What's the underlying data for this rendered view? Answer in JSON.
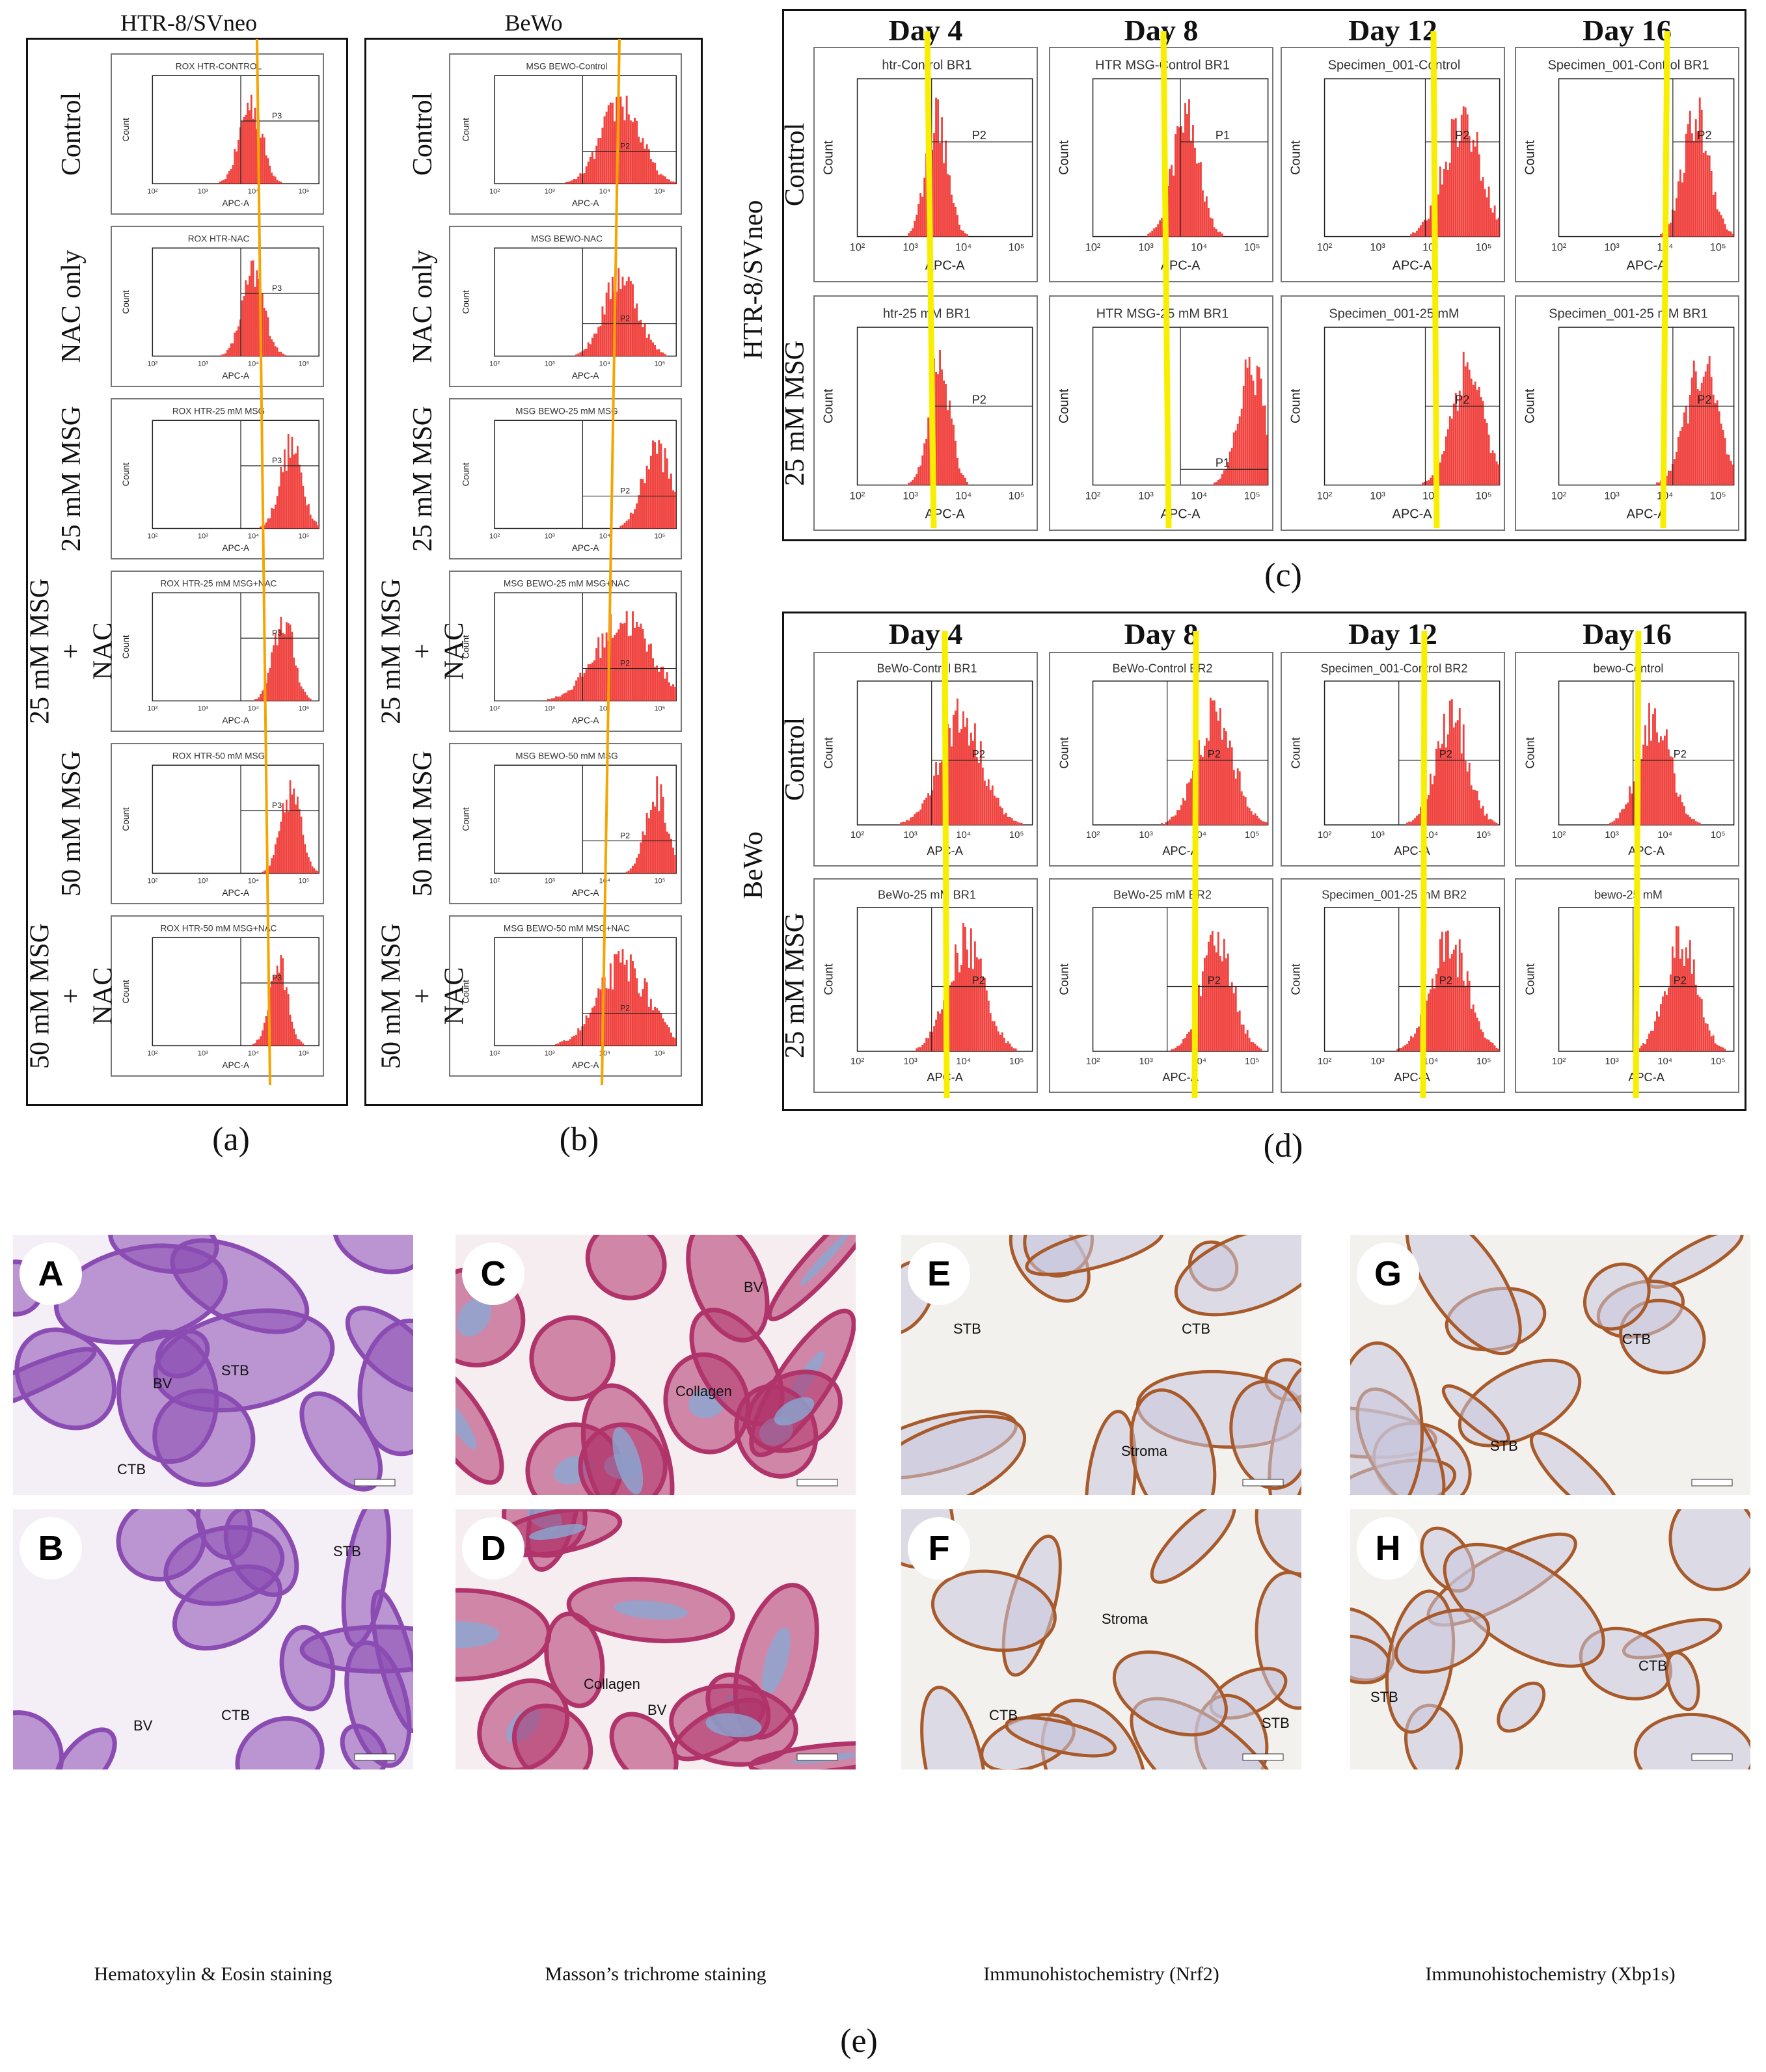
{
  "figure": {
    "panel_a": {
      "label": "(a)",
      "title": "HTR-8/SVneo",
      "rows": [
        {
          "label": [
            "Control"
          ],
          "plot_title": "ROX HTR-CONTROL"
        },
        {
          "label": [
            "NAC only"
          ],
          "plot_title": "ROX HTR-NAC"
        },
        {
          "label": [
            "25 mM MSG"
          ],
          "plot_title": "ROX HTR-25 mM MSG"
        },
        {
          "label": [
            "25 mM MSG",
            "+",
            "NAC"
          ],
          "plot_title": "ROX HTR-25 mM MSG+NAC"
        },
        {
          "label": [
            "50 mM MSG"
          ],
          "plot_title": "ROX HTR-50 mM MSG"
        },
        {
          "label": [
            "50 mM MSG",
            "+",
            "NAC"
          ],
          "plot_title": "ROX HTR-50 mM MSG+NAC"
        }
      ]
    },
    "panel_b": {
      "label": "(b)",
      "title": "BeWo",
      "rows": [
        {
          "label": [
            "Control"
          ],
          "plot_title": "MSG BEWO-Control"
        },
        {
          "label": [
            "NAC only"
          ],
          "plot_title": "MSG BEWO-NAC"
        },
        {
          "label": [
            "25 mM MSG"
          ],
          "plot_title": "MSG BEWO-25 mM MSG"
        },
        {
          "label": [
            "25 mM MSG",
            "+",
            "NAC"
          ],
          "plot_title": "MSG BEWO-25 mM MSG+NAC"
        },
        {
          "label": [
            "50 mM MSG"
          ],
          "plot_title": "MSG BEWO-50 mM MSG"
        },
        {
          "label": [
            "50 mM MSG",
            "+",
            "NAC"
          ],
          "plot_title": "MSG BEWO-50 mM MSG+NAC"
        }
      ]
    },
    "panel_c": {
      "label": "(c)",
      "group_label": "HTR-8/SVneo",
      "days": [
        "Day 4",
        "Day 8",
        "Day 12",
        "Day 16"
      ],
      "row_labels": [
        "Control",
        "25 mM MSG"
      ],
      "plot_titles": [
        [
          "htr-Control BR1",
          "HTR MSG-Control BR1",
          "Specimen_001-Control",
          "Specimen_001-Control BR1"
        ],
        [
          "htr-25 mM BR1",
          "HTR MSG-25 mM BR1",
          "Specimen_001-25 mM",
          "Specimen_001-25 mM BR1"
        ]
      ]
    },
    "panel_d": {
      "label": "(d)",
      "group_label": "BeWo",
      "days": [
        "Day 4",
        "Day 8",
        "Day 12",
        "Day 16"
      ],
      "row_labels": [
        "Control",
        "25 mM MSG"
      ],
      "plot_titles": [
        [
          "BeWo-Control BR1",
          "BeWo-Control BR2",
          "Specimen_001-Control BR2",
          "bewo-Control"
        ],
        [
          "BeWo-25 mM BR1",
          "BeWo-25 mM BR2",
          "Specimen_001-25 mM BR2",
          "bewo-25 mM"
        ]
      ]
    },
    "axis": {
      "x": "APC-A",
      "y": "Count"
    },
    "gates": {
      "a": "P3",
      "b": "P2",
      "c_row1": [
        "P2",
        "P1",
        "P2",
        "P2"
      ],
      "c_row2": [
        "P2",
        "P1",
        "P2",
        "P2"
      ],
      "d": "P2"
    },
    "panel_e": {
      "label": "(e)",
      "images": [
        {
          "letter": "A",
          "annotations": [
            "BV",
            "STB",
            "CTB"
          ]
        },
        {
          "letter": "B",
          "annotations": [
            "STB",
            "BV",
            "CTB"
          ]
        },
        {
          "letter": "C",
          "annotations": [
            "BV",
            "Collagen"
          ]
        },
        {
          "letter": "D",
          "annotations": [
            "BV",
            "Collagen"
          ]
        },
        {
          "letter": "E",
          "annotations": [
            "STB",
            "CTB",
            "Stroma"
          ]
        },
        {
          "letter": "F",
          "annotations": [
            "Stroma",
            "CTB",
            "STB"
          ]
        },
        {
          "letter": "G",
          "annotations": [
            "CTB",
            "STB"
          ]
        },
        {
          "letter": "H",
          "annotations": [
            "CTB",
            "STB"
          ]
        }
      ],
      "captions": [
        "Hematoxylin & Eosin staining",
        "Masson’s trichrome staining",
        "Immunohistochemistry (Nrf2)",
        "Immunohistochemistry (Xbp1s)"
      ]
    },
    "colors": {
      "histogram": "#f0433f",
      "marker_ab": "#f5a500",
      "marker_cd": "#f8ef00",
      "he_bg": "#f4eef7",
      "he_tissue": "#8a4cb2",
      "masson_bg": "#f6edf1",
      "masson_tissue": "#b0336a",
      "collagen": "#8aa8d2",
      "ihc_bg": "#f3f1ee",
      "ihc_tissue": "#c9c7dd",
      "ihc_brown": "#a85a2a"
    },
    "chart_data": {
      "type": "histogram",
      "description_units": "log10 APC-A fluorescence",
      "x_range": [
        2,
        5.3
      ],
      "panel_a_peaks": [
        3.95,
        4.0,
        4.75,
        4.6,
        4.75,
        4.5
      ],
      "panel_a_spread": [
        0.22,
        0.22,
        0.22,
        0.2,
        0.2,
        0.18
      ],
      "panel_b_peaks": [
        4.3,
        4.3,
        4.95,
        4.35,
        4.95,
        4.35
      ],
      "panel_b_spread": [
        0.35,
        0.3,
        0.25,
        0.5,
        0.2,
        0.45
      ],
      "panel_c_peaks": [
        [
          3.5,
          3.75,
          4.6,
          4.6
        ],
        [
          3.55,
          5.0,
          4.7,
          4.7
        ]
      ],
      "panel_c_spread": [
        [
          0.2,
          0.25,
          0.35,
          0.25
        ],
        [
          0.2,
          0.25,
          0.3,
          0.3
        ]
      ],
      "panel_d_peaks": [
        [
          3.95,
          4.3,
          4.4,
          3.8
        ],
        [
          4.05,
          4.35,
          4.35,
          4.3
        ]
      ],
      "panel_d_spread": [
        [
          0.4,
          0.35,
          0.3,
          0.3
        ],
        [
          0.35,
          0.3,
          0.35,
          0.3
        ]
      ]
    }
  }
}
